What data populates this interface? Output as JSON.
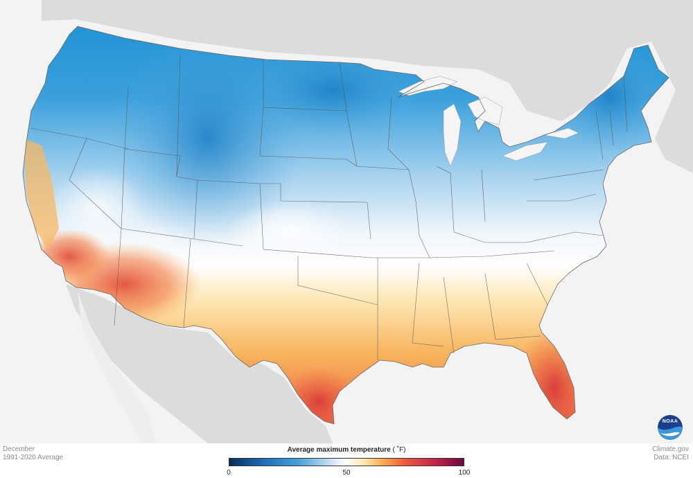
{
  "map": {
    "title": "",
    "variable": "Average maximum temperature",
    "region": "Contiguous United States",
    "base_layer_color": "#f3f3f3",
    "land_outside_color": "#dcdcdc",
    "water_color": "#f5f5f5",
    "border_color": "#555555"
  },
  "legend": {
    "title": "Average maximum temperature",
    "unit": "( ˚F)",
    "min_label": "0",
    "mid_label": "50",
    "max_label": "100",
    "range": [
      0,
      100
    ],
    "color_stops": [
      {
        "value": 0,
        "color": "#0a2d5c"
      },
      {
        "value": 15,
        "color": "#1e6fb8"
      },
      {
        "value": 30,
        "color": "#4aa3dc"
      },
      {
        "value": 45,
        "color": "#dbeaf6"
      },
      {
        "value": 50,
        "color": "#ffffff"
      },
      {
        "value": 58,
        "color": "#fde3a6"
      },
      {
        "value": 65,
        "color": "#f9b052"
      },
      {
        "value": 75,
        "color": "#ee5a3f"
      },
      {
        "value": 88,
        "color": "#c4224a"
      },
      {
        "value": 100,
        "color": "#6b0b3e"
      }
    ]
  },
  "footer": {
    "period_month": "December",
    "period_range": "1991-2020 Average",
    "source_site": "Climate.gov",
    "source_data": "Data: NCEI"
  },
  "logo": {
    "icon": "noaa-logo-icon",
    "text": "NOAA"
  }
}
